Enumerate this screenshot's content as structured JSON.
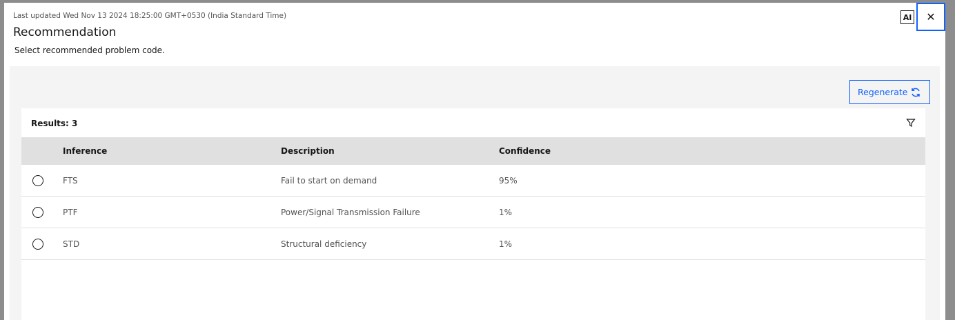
{
  "header": {
    "last_updated": "Last updated Wed Nov 13 2024 18:25:00 GMT+0530 (India Standard Time)",
    "title": "Recommendation",
    "subtitle": "Select recommended problem code.",
    "ai_badge": "AI",
    "close_icon": "close-icon"
  },
  "toolbar": {
    "regenerate_label": "Regenerate",
    "regenerate_icon": "renew-icon",
    "accent": "#0f62fe"
  },
  "table": {
    "results_label": "Results: 3",
    "filter_icon": "filter-icon",
    "columns": [
      "Inference",
      "Description",
      "Confidence"
    ],
    "rows": [
      {
        "inference": "FTS",
        "description": "Fail to start on demand",
        "confidence": "95%"
      },
      {
        "inference": "PTF",
        "description": "Power/Signal Transmission Failure",
        "confidence": "1%"
      },
      {
        "inference": "STD",
        "description": "Structural deficiency",
        "confidence": "1%"
      }
    ]
  }
}
